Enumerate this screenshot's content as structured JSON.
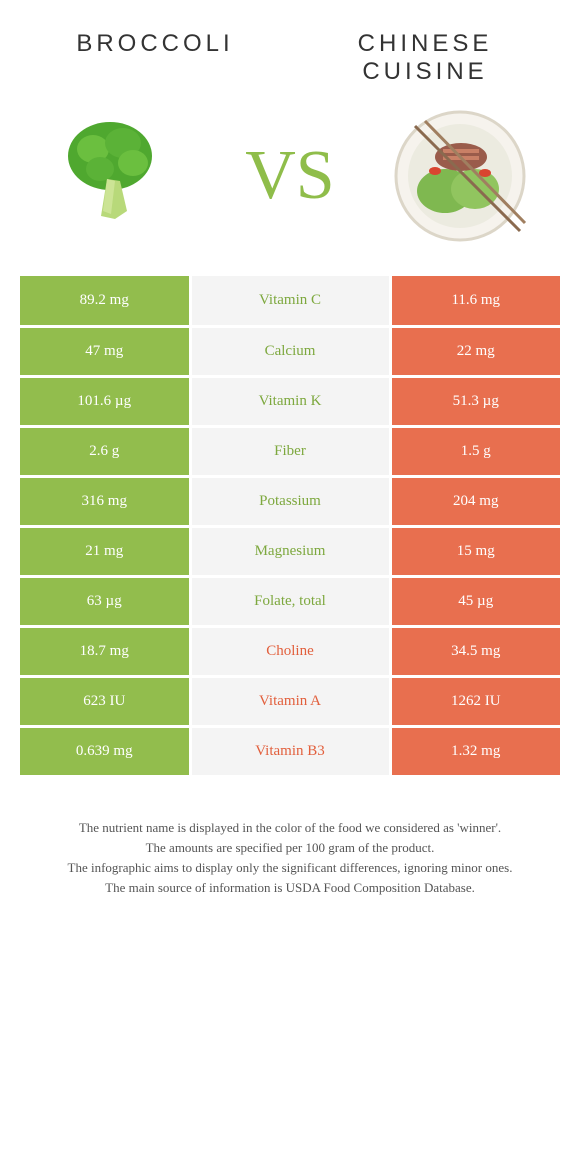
{
  "header": {
    "left_title": "Broccoli",
    "right_title": "Chinese cuisine"
  },
  "vs_label": "VS",
  "colors": {
    "green": "#92bd4d",
    "orange": "#e86f4f",
    "text_green": "#7da83e",
    "text_orange": "#e25f3c",
    "mid_bg": "#f4f4f4"
  },
  "rows": [
    {
      "left": "89.2 mg",
      "label": "Vitamin C",
      "right": "11.6 mg",
      "winner": "left"
    },
    {
      "left": "47 mg",
      "label": "Calcium",
      "right": "22 mg",
      "winner": "left"
    },
    {
      "left": "101.6 µg",
      "label": "Vitamin K",
      "right": "51.3 µg",
      "winner": "left"
    },
    {
      "left": "2.6 g",
      "label": "Fiber",
      "right": "1.5 g",
      "winner": "left"
    },
    {
      "left": "316 mg",
      "label": "Potassium",
      "right": "204 mg",
      "winner": "left"
    },
    {
      "left": "21 mg",
      "label": "Magnesium",
      "right": "15 mg",
      "winner": "left"
    },
    {
      "left": "63 µg",
      "label": "Folate, total",
      "right": "45 µg",
      "winner": "left"
    },
    {
      "left": "18.7 mg",
      "label": "Choline",
      "right": "34.5 mg",
      "winner": "right"
    },
    {
      "left": "623 IU",
      "label": "Vitamin A",
      "right": "1262 IU",
      "winner": "right"
    },
    {
      "left": "0.639 mg",
      "label": "Vitamin B3",
      "right": "1.32 mg",
      "winner": "right"
    }
  ],
  "footnotes": [
    "The nutrient name is displayed in the color of the food we considered as 'winner'.",
    "The amounts are specified per 100 gram of the product.",
    "The infographic aims to display only the significant differences, ignoring minor ones.",
    "The main source of information is USDA Food Composition Database."
  ]
}
